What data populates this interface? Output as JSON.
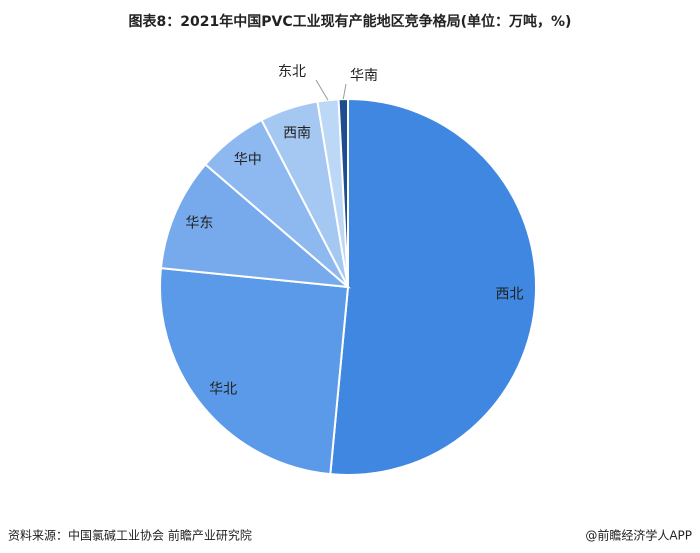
{
  "chart_data": {
    "type": "pie",
    "title": "图表8：2021年中国PVC工业现有产能地区竞争格局(单位：万吨，%)",
    "categories": [
      "西北",
      "华北",
      "华东",
      "华中",
      "西南",
      "东北",
      "华南"
    ],
    "values": [
      51.5,
      25.1,
      9.7,
      6.1,
      5.0,
      1.8,
      0.8
    ],
    "colors": [
      "#3f87e0",
      "#5b9ae8",
      "#77aaec",
      "#8db9f0",
      "#a5c8f3",
      "#bdd7f6",
      "#1f4e8f"
    ],
    "source": "资料来源：中国氯碱工业协会 前瞻产业研究院",
    "footer": "@前瞻经济学人APP"
  }
}
